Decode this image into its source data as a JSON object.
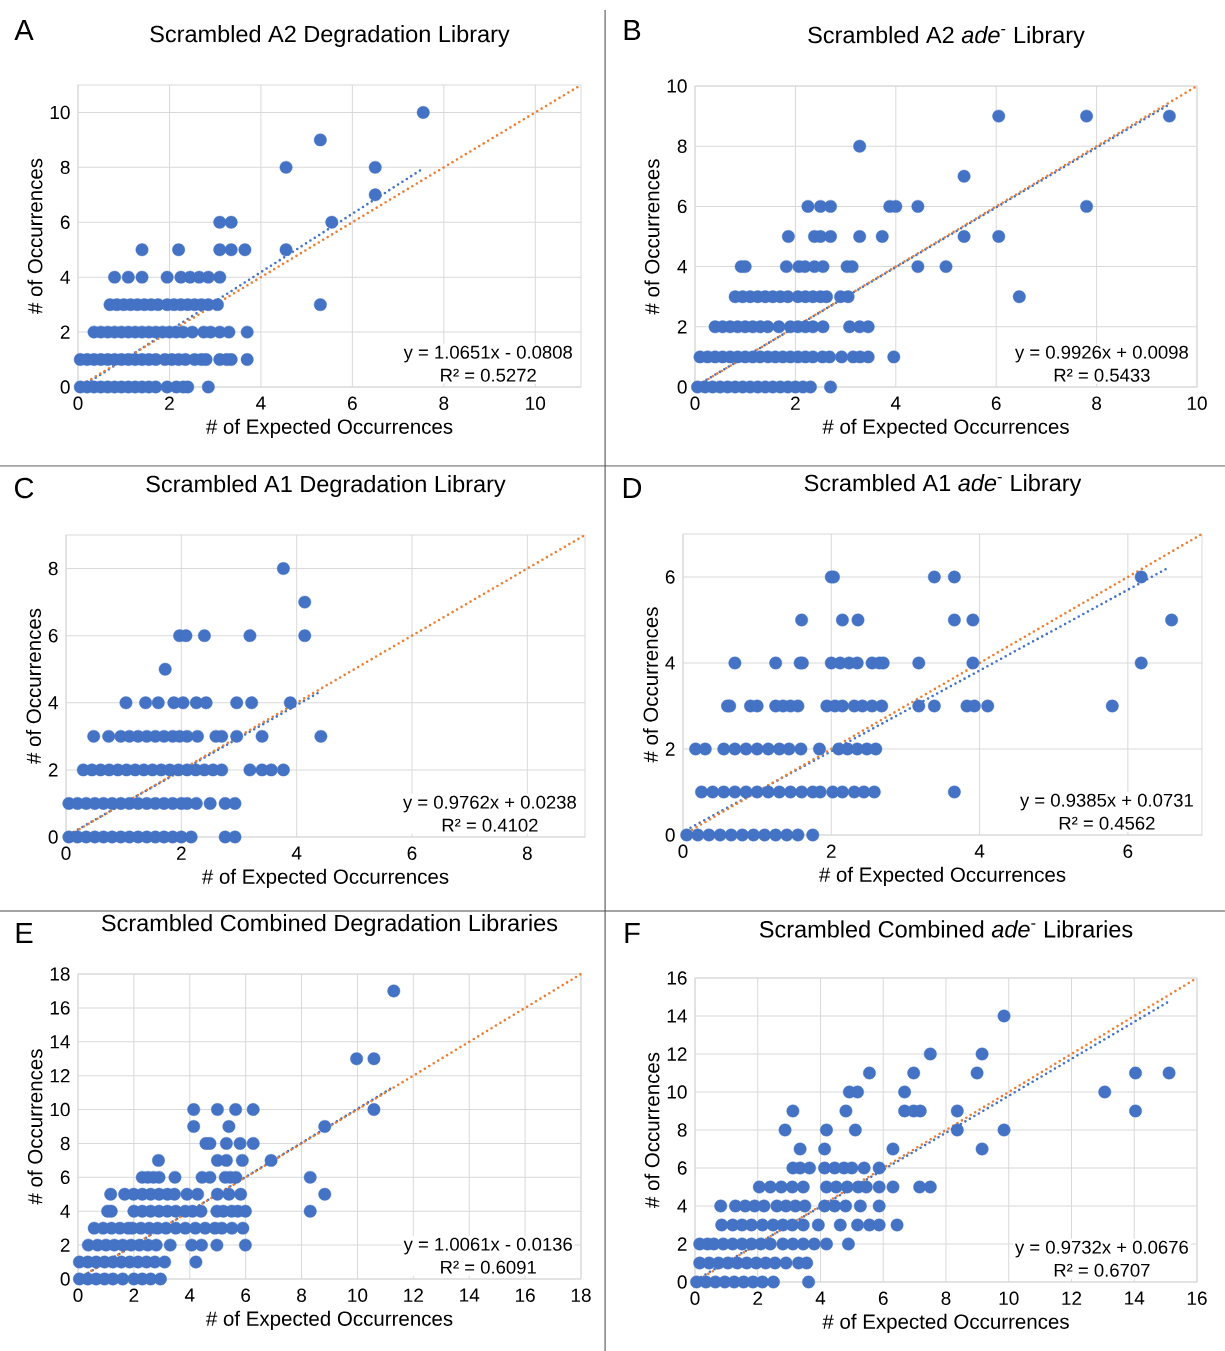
{
  "chart_data": [
    {
      "type": "scatter",
      "title": "Scrambled A2 Degradation Library",
      "xlabel": "# of Expected Occurrences",
      "ylabel": "# of Occurrences",
      "xlim": [
        0,
        11
      ],
      "ylim": [
        0,
        11
      ],
      "xticks": [
        0,
        2,
        4,
        6,
        8,
        10
      ],
      "yticks": [
        0,
        2,
        4,
        6,
        8,
        10
      ],
      "grid": true,
      "annotations": [
        "A",
        "y = 1.0651x - 0.0808",
        "R² = 0.5272"
      ],
      "series": [
        {
          "type": "scatter",
          "color": "#4472c4",
          "marker": "circle",
          "x": [
            7.55,
            5.3,
            4.55,
            6.5,
            6.5,
            3.1,
            3.35,
            5.55,
            1.4,
            2.2,
            3.1,
            3.35,
            3.65,
            4.55,
            0.8,
            1.1,
            1.4,
            1.95,
            2.25,
            2.45,
            2.65,
            2.85,
            3.1,
            0.7,
            0.85,
            1.0,
            1.15,
            1.3,
            1.45,
            1.6,
            1.75,
            1.95,
            2.1,
            2.25,
            2.4,
            2.55,
            2.7,
            2.85,
            3.05,
            5.3,
            0.35,
            0.5,
            0.65,
            0.8,
            0.95,
            1.1,
            1.25,
            1.4,
            1.55,
            1.7,
            1.85,
            2.0,
            2.15,
            2.3,
            2.5,
            2.75,
            2.9,
            3.1,
            3.3,
            3.7,
            0.05,
            0.2,
            0.35,
            0.5,
            0.65,
            0.8,
            0.95,
            1.1,
            1.25,
            1.4,
            1.55,
            1.7,
            1.9,
            2.05,
            2.2,
            2.35,
            2.55,
            2.7,
            2.8,
            3.1,
            3.25,
            3.35,
            3.7,
            0.05,
            0.2,
            0.35,
            0.5,
            0.65,
            0.8,
            0.95,
            1.1,
            1.25,
            1.4,
            1.55,
            1.7,
            1.95,
            2.15,
            2.3,
            2.4,
            2.85
          ],
          "values": [
            10,
            9,
            8,
            8,
            7,
            6,
            6,
            6,
            5,
            5,
            5,
            5,
            5,
            5,
            4,
            4,
            4,
            4,
            4,
            4,
            4,
            4,
            4,
            3,
            3,
            3,
            3,
            3,
            3,
            3,
            3,
            3,
            3,
            3,
            3,
            3,
            3,
            3,
            3,
            3,
            2,
            2,
            2,
            2,
            2,
            2,
            2,
            2,
            2,
            2,
            2,
            2,
            2,
            2,
            2,
            2,
            2,
            2,
            2,
            2,
            1,
            1,
            1,
            1,
            1,
            1,
            1,
            1,
            1,
            1,
            1,
            1,
            1,
            1,
            1,
            1,
            1,
            1,
            1,
            1,
            1,
            1,
            1,
            0,
            0,
            0,
            0,
            0,
            0,
            0,
            0,
            0,
            0,
            0,
            0,
            0,
            0,
            0,
            0,
            0
          ]
        },
        {
          "type": "line",
          "color": "#4472c4",
          "marker": "none",
          "line_style": "dotted",
          "x": [
            0.1,
            7.55
          ],
          "values": [
            0.03,
            7.96
          ]
        },
        {
          "type": "line",
          "color": "#ed7d31",
          "marker": "none",
          "line_style": "dotted",
          "x": [
            0,
            11
          ],
          "values": [
            0,
            11
          ]
        }
      ]
    },
    {
      "type": "scatter",
      "title": "Scrambled A2 *ade*$^{-}$ Library",
      "xlabel": "# of Expected Occurrences",
      "ylabel": "# of Occurrences",
      "xlim": [
        0,
        10
      ],
      "ylim": [
        0,
        10
      ],
      "xticks": [
        0,
        2,
        4,
        6,
        8,
        10
      ],
      "yticks": [
        0,
        2,
        4,
        6,
        8,
        10
      ],
      "grid": true,
      "annotations": [
        "B",
        "y = 0.9926x + 0.0098",
        "R² = 0.5433"
      ],
      "series": [
        {
          "type": "scatter",
          "color": "#4472c4",
          "marker": "circle",
          "x": [
            6.05,
            7.8,
            9.45,
            3.28,
            5.36,
            2.25,
            2.5,
            2.7,
            3.88,
            4.0,
            4.44,
            7.8,
            1.86,
            2.38,
            2.5,
            2.7,
            3.28,
            3.73,
            5.36,
            6.05,
            0.92,
            1.0,
            1.82,
            2.07,
            2.19,
            2.38,
            2.55,
            3.03,
            3.13,
            4.44,
            5.0,
            0.8,
            0.95,
            1.1,
            1.25,
            1.4,
            1.55,
            1.7,
            1.85,
            2.05,
            2.2,
            2.35,
            2.5,
            2.62,
            2.9,
            3.05,
            6.46,
            0.4,
            0.55,
            0.7,
            0.85,
            1.0,
            1.15,
            1.3,
            1.45,
            1.67,
            1.9,
            2.05,
            2.2,
            2.35,
            2.55,
            3.08,
            3.28,
            3.45,
            0.1,
            0.25,
            0.4,
            0.55,
            0.7,
            0.85,
            1.0,
            1.15,
            1.3,
            1.45,
            1.6,
            1.75,
            1.9,
            2.05,
            2.2,
            2.35,
            2.54,
            2.68,
            2.92,
            3.15,
            3.29,
            3.45,
            3.96,
            0.05,
            0.2,
            0.35,
            0.5,
            0.65,
            0.8,
            0.95,
            1.1,
            1.25,
            1.4,
            1.55,
            1.7,
            1.85,
            2.0,
            2.15,
            2.3,
            2.7
          ],
          "values": [
            9,
            9,
            9,
            8,
            7,
            6,
            6,
            6,
            6,
            6,
            6,
            6,
            5,
            5,
            5,
            5,
            5,
            5,
            5,
            5,
            4,
            4,
            4,
            4,
            4,
            4,
            4,
            4,
            4,
            4,
            4,
            3,
            3,
            3,
            3,
            3,
            3,
            3,
            3,
            3,
            3,
            3,
            3,
            3,
            3,
            3,
            3,
            2,
            2,
            2,
            2,
            2,
            2,
            2,
            2,
            2,
            2,
            2,
            2,
            2,
            2,
            2,
            2,
            2,
            1,
            1,
            1,
            1,
            1,
            1,
            1,
            1,
            1,
            1,
            1,
            1,
            1,
            1,
            1,
            1,
            1,
            1,
            1,
            1,
            1,
            1,
            1,
            0,
            0,
            0,
            0,
            0,
            0,
            0,
            0,
            0,
            0,
            0,
            0,
            0,
            0,
            0,
            0,
            0
          ]
        },
        {
          "type": "line",
          "color": "#4472c4",
          "marker": "none",
          "line_style": "dotted",
          "x": [
            0.05,
            9.45
          ],
          "values": [
            0.06,
            9.39
          ]
        },
        {
          "type": "line",
          "color": "#ed7d31",
          "marker": "none",
          "line_style": "dotted",
          "x": [
            0,
            10
          ],
          "values": [
            0,
            10
          ]
        }
      ]
    },
    {
      "type": "scatter",
      "title": "Scrambled A1 Degradation Library",
      "xlabel": "# of Expected Occurrences",
      "ylabel": "# of Occurrences",
      "xlim": [
        0,
        9
      ],
      "ylim": [
        0,
        9
      ],
      "xticks": [
        0,
        2,
        4,
        6,
        8
      ],
      "yticks": [
        0,
        2,
        4,
        6,
        8
      ],
      "grid": true,
      "annotations": [
        "C",
        "y = 0.9762x + 0.0238",
        "R² = 0.4102"
      ],
      "series": [
        {
          "type": "scatter",
          "color": "#4472c4",
          "marker": "circle",
          "x": [
            3.77,
            4.14,
            1.97,
            2.08,
            2.4,
            3.19,
            4.14,
            1.72,
            1.04,
            1.38,
            1.6,
            1.87,
            2.03,
            2.26,
            2.43,
            2.96,
            3.22,
            3.89,
            0.48,
            0.74,
            0.95,
            1.1,
            1.25,
            1.4,
            1.55,
            1.7,
            1.85,
            1.97,
            2.1,
            2.28,
            2.6,
            2.7,
            2.96,
            3.4,
            4.42,
            0.3,
            0.45,
            0.6,
            0.75,
            0.9,
            1.05,
            1.2,
            1.35,
            1.5,
            1.65,
            1.8,
            1.95,
            2.1,
            2.25,
            2.4,
            2.55,
            2.7,
            3.19,
            3.4,
            3.56,
            3.77,
            0.05,
            0.2,
            0.35,
            0.5,
            0.65,
            0.8,
            0.95,
            1.1,
            1.25,
            1.4,
            1.55,
            1.7,
            1.85,
            2.0,
            2.1,
            2.26,
            2.5,
            2.76,
            2.93,
            0.05,
            0.2,
            0.35,
            0.5,
            0.65,
            0.8,
            0.95,
            1.1,
            1.25,
            1.4,
            1.55,
            1.7,
            1.85,
            2.0,
            2.17,
            2.76,
            2.93
          ],
          "values": [
            8,
            7,
            6,
            6,
            6,
            6,
            6,
            5,
            4,
            4,
            4,
            4,
            4,
            4,
            4,
            4,
            4,
            4,
            3,
            3,
            3,
            3,
            3,
            3,
            3,
            3,
            3,
            3,
            3,
            3,
            3,
            3,
            3,
            3,
            3,
            2,
            2,
            2,
            2,
            2,
            2,
            2,
            2,
            2,
            2,
            2,
            2,
            2,
            2,
            2,
            2,
            2,
            2,
            2,
            2,
            2,
            1,
            1,
            1,
            1,
            1,
            1,
            1,
            1,
            1,
            1,
            1,
            1,
            1,
            1,
            1,
            1,
            1,
            1,
            1,
            0,
            0,
            0,
            0,
            0,
            0,
            0,
            0,
            0,
            0,
            0,
            0,
            0,
            0,
            0,
            0,
            0
          ]
        },
        {
          "type": "line",
          "color": "#4472c4",
          "marker": "none",
          "line_style": "dotted",
          "x": [
            0.05,
            4.42
          ],
          "values": [
            0.07,
            4.34
          ]
        },
        {
          "type": "line",
          "color": "#ed7d31",
          "marker": "none",
          "line_style": "dotted",
          "x": [
            0,
            9
          ],
          "values": [
            0,
            9
          ]
        }
      ]
    },
    {
      "type": "scatter",
      "title": "Scrambled A1 *ade*$^{-}$ Library",
      "xlabel": "# of Expected Occurrences",
      "ylabel": "# of Occurrences",
      "xlim": [
        0,
        7
      ],
      "ylim": [
        0,
        7
      ],
      "xticks": [
        0,
        2,
        4,
        6
      ],
      "yticks": [
        0,
        2,
        4,
        6
      ],
      "grid": true,
      "annotations": [
        "D",
        "y = 0.9385x + 0.0731",
        "R² = 0.4562"
      ],
      "series": [
        {
          "type": "scatter",
          "color": "#4472c4",
          "marker": "circle",
          "x": [
            2.0,
            2.03,
            3.39,
            3.66,
            6.18,
            1.6,
            2.15,
            2.36,
            3.66,
            3.91,
            6.59,
            0.7,
            1.25,
            1.58,
            1.61,
            2.0,
            2.12,
            2.24,
            2.35,
            2.55,
            2.65,
            2.7,
            3.18,
            3.91,
            6.18,
            0.6,
            0.63,
            0.91,
            1.0,
            1.25,
            1.35,
            1.45,
            1.55,
            1.94,
            2.05,
            2.15,
            2.31,
            2.42,
            2.55,
            2.68,
            3.18,
            3.39,
            3.83,
            3.93,
            4.11,
            5.79,
            0.17,
            0.3,
            0.55,
            0.7,
            0.85,
            1.0,
            1.15,
            1.3,
            1.43,
            1.59,
            1.84,
            2.1,
            2.22,
            2.35,
            2.48,
            2.6,
            0.25,
            0.4,
            0.55,
            0.7,
            0.85,
            1.0,
            1.15,
            1.3,
            1.45,
            1.6,
            1.75,
            1.85,
            2.02,
            2.15,
            2.31,
            2.44,
            2.58,
            3.66,
            0.05,
            0.2,
            0.35,
            0.5,
            0.65,
            0.8,
            0.95,
            1.1,
            1.25,
            1.4,
            1.55,
            1.75
          ],
          "values": [
            6,
            6,
            6,
            6,
            6,
            5,
            5,
            5,
            5,
            5,
            5,
            4,
            4,
            4,
            4,
            4,
            4,
            4,
            4,
            4,
            4,
            4,
            4,
            4,
            4,
            3,
            3,
            3,
            3,
            3,
            3,
            3,
            3,
            3,
            3,
            3,
            3,
            3,
            3,
            3,
            3,
            3,
            3,
            3,
            3,
            3,
            2,
            2,
            2,
            2,
            2,
            2,
            2,
            2,
            2,
            2,
            2,
            2,
            2,
            2,
            2,
            2,
            1,
            1,
            1,
            1,
            1,
            1,
            1,
            1,
            1,
            1,
            1,
            1,
            1,
            1,
            1,
            1,
            1,
            1,
            0,
            0,
            0,
            0,
            0,
            0,
            0,
            0,
            0,
            0,
            0,
            0
          ]
        },
        {
          "type": "line",
          "color": "#4472c4",
          "marker": "none",
          "line_style": "dotted",
          "x": [
            0.04,
            6.52
          ],
          "values": [
            0.11,
            6.19
          ]
        },
        {
          "type": "line",
          "color": "#ed7d31",
          "marker": "none",
          "line_style": "dotted",
          "x": [
            0,
            7
          ],
          "values": [
            0,
            7
          ]
        }
      ]
    },
    {
      "type": "scatter",
      "title": "Scrambled Combined Degradation Libraries",
      "xlabel": "# of Expected Occurrences",
      "ylabel": "# of Occurrences",
      "xlim": [
        0,
        18
      ],
      "ylim": [
        0,
        18
      ],
      "xticks": [
        0,
        2,
        4,
        6,
        8,
        10,
        12,
        14,
        16,
        18
      ],
      "yticks": [
        0,
        2,
        4,
        6,
        8,
        10,
        12,
        14,
        16,
        18
      ],
      "grid": true,
      "annotations": [
        "E",
        "y = 1.0061x - 0.0136",
        "R² = 0.6091"
      ],
      "series": [
        {
          "type": "scatter",
          "color": "#4472c4",
          "marker": "circle",
          "x": [
            11.3,
            9.97,
            10.59,
            4.14,
            4.99,
            5.64,
            6.27,
            10.59,
            4.14,
            5.4,
            8.83,
            4.58,
            4.72,
            5.31,
            5.8,
            6.27,
            2.88,
            4.99,
            5.31,
            5.88,
            6.91,
            2.3,
            2.5,
            2.7,
            2.9,
            3.47,
            4.44,
            4.72,
            5.27,
            5.45,
            5.65,
            8.31,
            1.17,
            1.67,
            1.99,
            2.3,
            2.6,
            2.9,
            3.2,
            3.45,
            3.9,
            4.28,
            4.99,
            5.4,
            5.82,
            8.83,
            1.06,
            1.19,
            2.0,
            2.3,
            2.6,
            2.9,
            3.2,
            3.5,
            3.84,
            4.1,
            4.4,
            4.97,
            5.2,
            5.5,
            5.72,
            5.99,
            8.31,
            0.58,
            0.9,
            1.2,
            1.5,
            1.8,
            1.95,
            2.25,
            2.55,
            2.85,
            3.15,
            3.5,
            3.84,
            4.2,
            4.55,
            4.9,
            5.15,
            5.51,
            5.9,
            0.37,
            0.7,
            1.0,
            1.3,
            1.6,
            1.9,
            2.2,
            2.5,
            2.8,
            3.3,
            4.07,
            4.42,
            4.97,
            5.99,
            0.05,
            0.35,
            0.65,
            0.95,
            1.25,
            1.55,
            1.85,
            2.15,
            2.45,
            2.75,
            3.1,
            4.22,
            0.05,
            0.35,
            0.65,
            0.95,
            1.25,
            1.6,
            2.0,
            2.3,
            2.6,
            2.95
          ],
          "values": [
            17,
            13,
            13,
            10,
            10,
            10,
            10,
            10,
            9,
            9,
            9,
            8,
            8,
            8,
            8,
            8,
            7,
            7,
            7,
            7,
            7,
            6,
            6,
            6,
            6,
            6,
            6,
            6,
            6,
            6,
            6,
            6,
            5,
            5,
            5,
            5,
            5,
            5,
            5,
            5,
            5,
            5,
            5,
            5,
            5,
            5,
            4,
            4,
            4,
            4,
            4,
            4,
            4,
            4,
            4,
            4,
            4,
            4,
            4,
            4,
            4,
            4,
            4,
            3,
            3,
            3,
            3,
            3,
            3,
            3,
            3,
            3,
            3,
            3,
            3,
            3,
            3,
            3,
            3,
            3,
            3,
            2,
            2,
            2,
            2,
            2,
            2,
            2,
            2,
            2,
            2,
            2,
            2,
            2,
            2,
            1,
            1,
            1,
            1,
            1,
            1,
            1,
            1,
            1,
            1,
            1,
            1,
            0,
            0,
            0,
            0,
            0,
            0,
            0,
            0,
            0,
            0
          ]
        },
        {
          "type": "line",
          "color": "#4472c4",
          "marker": "none",
          "line_style": "dotted",
          "x": [
            0.05,
            11.3
          ],
          "values": [
            0.04,
            11.35
          ]
        },
        {
          "type": "line",
          "color": "#ed7d31",
          "marker": "none",
          "line_style": "dotted",
          "x": [
            0,
            18
          ],
          "values": [
            0,
            18
          ]
        }
      ]
    },
    {
      "type": "scatter",
      "title": "Scrambled Combined *ade*$^{-}$ Libraries",
      "xlabel": "# of Expected Occurrences",
      "ylabel": "# of Occurrences",
      "xlim": [
        0,
        16
      ],
      "ylim": [
        0,
        16
      ],
      "xticks": [
        0,
        2,
        4,
        6,
        8,
        10,
        12,
        14,
        16
      ],
      "yticks": [
        0,
        2,
        4,
        6,
        8,
        10,
        12,
        14,
        16
      ],
      "grid": true,
      "annotations": [
        "F",
        "y = 0.9732x + 0.0676",
        "R² = 0.6707"
      ],
      "series": [
        {
          "type": "scatter",
          "color": "#4472c4",
          "marker": "circle",
          "x": [
            9.85,
            7.5,
            9.15,
            5.56,
            6.97,
            8.99,
            14.04,
            15.11,
            4.92,
            5.18,
            6.68,
            13.06,
            3.12,
            4.81,
            6.68,
            6.97,
            7.18,
            8.36,
            14.04,
            2.87,
            4.19,
            5.11,
            8.36,
            9.85,
            3.35,
            4.13,
            6.31,
            9.15,
            3.12,
            3.35,
            3.65,
            4.13,
            4.45,
            4.75,
            5.0,
            5.39,
            5.87,
            2.05,
            2.4,
            2.75,
            3.1,
            3.45,
            4.19,
            4.5,
            4.85,
            5.2,
            5.46,
            5.87,
            6.31,
            7.16,
            7.5,
            0.82,
            1.29,
            1.6,
            1.9,
            2.2,
            2.61,
            2.9,
            3.2,
            3.5,
            4.13,
            4.45,
            4.8,
            5.27,
            5.87,
            0.85,
            1.2,
            1.5,
            1.8,
            2.15,
            2.49,
            2.8,
            3.1,
            3.45,
            3.93,
            4.63,
            5.18,
            5.56,
            5.87,
            6.44,
            0.15,
            0.4,
            0.6,
            0.9,
            1.2,
            1.5,
            1.8,
            2.1,
            2.4,
            2.8,
            3.12,
            3.45,
            3.8,
            4.19,
            4.89,
            0.15,
            0.45,
            0.75,
            1.05,
            1.35,
            1.65,
            1.95,
            2.25,
            2.55,
            2.9,
            3.3,
            3.56,
            0.05,
            0.35,
            0.65,
            0.95,
            1.25,
            1.55,
            1.85,
            2.15,
            2.5,
            3.62
          ],
          "values": [
            14,
            12,
            12,
            11,
            11,
            11,
            11,
            11,
            10,
            10,
            10,
            10,
            9,
            9,
            9,
            9,
            9,
            9,
            9,
            8,
            8,
            8,
            8,
            8,
            7,
            7,
            7,
            7,
            6,
            6,
            6,
            6,
            6,
            6,
            6,
            6,
            6,
            5,
            5,
            5,
            5,
            5,
            5,
            5,
            5,
            5,
            5,
            5,
            5,
            5,
            5,
            4,
            4,
            4,
            4,
            4,
            4,
            4,
            4,
            4,
            4,
            4,
            4,
            4,
            4,
            3,
            3,
            3,
            3,
            3,
            3,
            3,
            3,
            3,
            3,
            3,
            3,
            3,
            3,
            3,
            2,
            2,
            2,
            2,
            2,
            2,
            2,
            2,
            2,
            2,
            2,
            2,
            2,
            2,
            2,
            1,
            1,
            1,
            1,
            1,
            1,
            1,
            1,
            1,
            1,
            1,
            1,
            0,
            0,
            0,
            0,
            0,
            0,
            0,
            0,
            0,
            0
          ]
        },
        {
          "type": "line",
          "color": "#4472c4",
          "marker": "none",
          "line_style": "dotted",
          "x": [
            0.05,
            15.1
          ],
          "values": [
            0.12,
            14.76
          ]
        },
        {
          "type": "line",
          "color": "#ed7d31",
          "marker": "none",
          "line_style": "dotted",
          "x": [
            0,
            16
          ],
          "values": [
            0,
            16
          ]
        }
      ]
    }
  ]
}
